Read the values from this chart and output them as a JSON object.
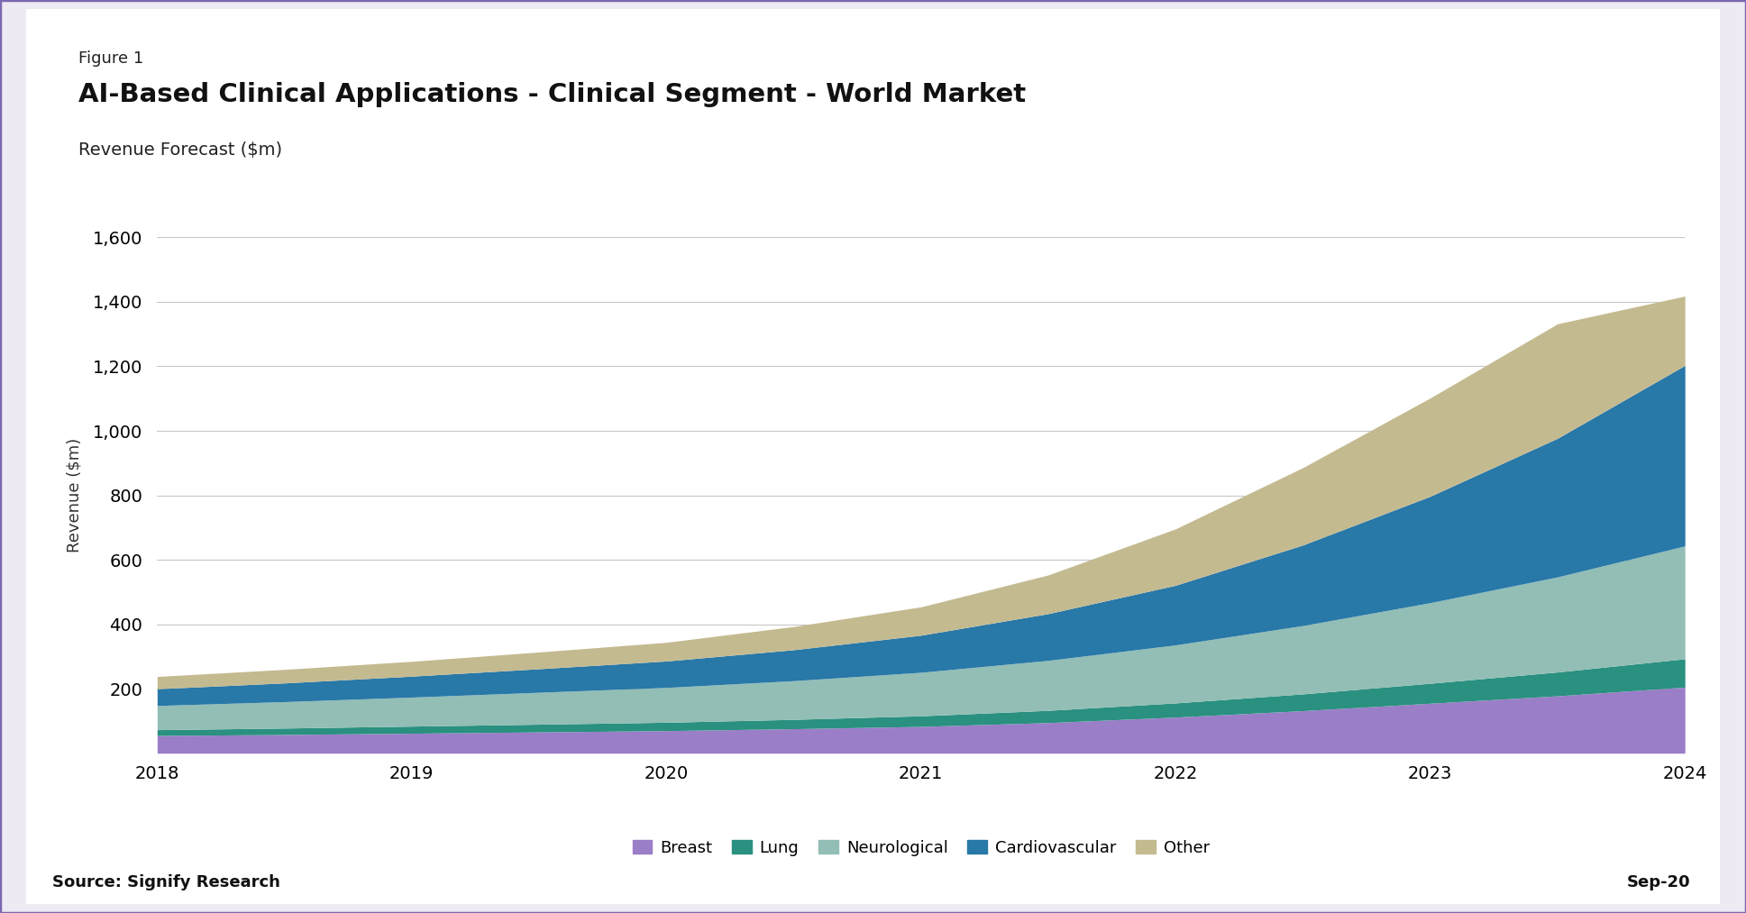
{
  "title_figure": "Figure 1",
  "title_main": "AI-Based Clinical Applications - Clinical Segment - World Market",
  "title_sub": "Revenue Forecast ($m)",
  "ylabel": "Revenue ($m)",
  "source": "Source: Signify Research",
  "date_label": "Sep-20",
  "years": [
    2018,
    2018.5,
    2019,
    2019.5,
    2020,
    2020.5,
    2021,
    2021.5,
    2022,
    2022.5,
    2023,
    2023.5,
    2024
  ],
  "series": {
    "Breast": [
      55,
      58,
      62,
      66,
      70,
      76,
      83,
      95,
      112,
      132,
      155,
      178,
      205
    ],
    "Lung": [
      18,
      20,
      22,
      24,
      26,
      29,
      33,
      38,
      44,
      52,
      62,
      74,
      88
    ],
    "Neurological": [
      75,
      82,
      90,
      99,
      108,
      120,
      135,
      155,
      180,
      212,
      250,
      295,
      350
    ],
    "Cardiovascular": [
      52,
      58,
      65,
      73,
      82,
      96,
      115,
      145,
      185,
      250,
      330,
      430,
      560
    ],
    "Other": [
      38,
      42,
      46,
      52,
      58,
      72,
      88,
      120,
      175,
      240,
      305,
      355,
      215
    ]
  },
  "colors": {
    "Breast": "#9B7EC8",
    "Lung": "#2A9080",
    "Neurological": "#92BEB5",
    "Cardiovascular": "#2878A8",
    "Other": "#C4BA90"
  },
  "ylim": [
    0,
    1600
  ],
  "yticks": [
    0,
    200,
    400,
    600,
    800,
    1000,
    1200,
    1400,
    1600
  ],
  "background_color": "#FFFFFF",
  "outer_background": "#EDEAF3",
  "border_color": "#7B68B0",
  "grid_color": "#C8C8C8"
}
